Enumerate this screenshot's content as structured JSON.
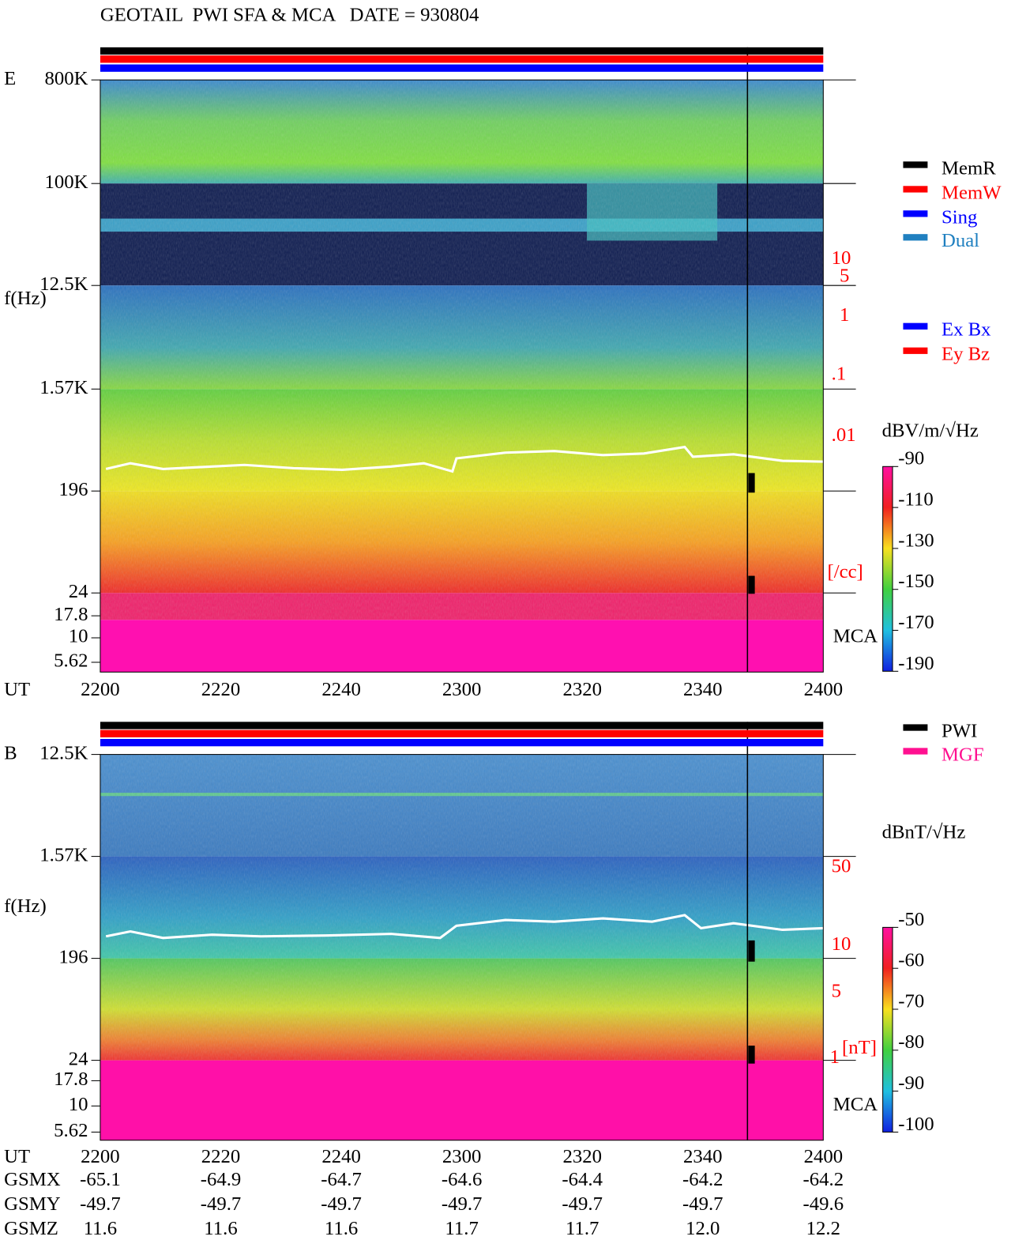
{
  "header": {
    "title": "GEOTAIL  PWI SFA & MCA   DATE = 930804"
  },
  "panels": [
    {
      "label": "E",
      "y_label": "f(Hz)",
      "y_ticks": [
        "800K",
        "100K",
        "12.5K",
        "1.57K",
        "196",
        "24",
        "17.8",
        "10",
        "5.62"
      ],
      "right_scale": [
        "10",
        "5",
        "1",
        ".1",
        ".01",
        "[/cc]"
      ],
      "mca": "MCA",
      "x_label": "UT",
      "x_ticks": [
        "2200",
        "2220",
        "2240",
        "2300",
        "2320",
        "2340",
        "2400"
      ],
      "colorbar": {
        "unit": "dBV/m/√Hz",
        "ticks": [
          "-90",
          "-110",
          "-130",
          "-150",
          "-170",
          "-190"
        ]
      },
      "legend": [
        {
          "name": "MemR",
          "color": "#000000"
        },
        {
          "name": "MemW",
          "color": "#ff0000"
        },
        {
          "name": "Sing",
          "color": "#0000ff"
        },
        {
          "name": "Dual",
          "color": "#2080c0"
        }
      ],
      "legend2": [
        {
          "name": "Ex Bx",
          "color": "#0000ff"
        },
        {
          "name": "Ey Bz",
          "color": "#ff0000"
        }
      ]
    },
    {
      "label": "B",
      "y_label": "f(Hz)",
      "y_ticks": [
        "12.5K",
        "1.57K",
        "196",
        "24",
        "17.8",
        "10",
        "5.62"
      ],
      "right_scale": [
        "50",
        "10",
        "5",
        "1",
        "[nT]"
      ],
      "mca": "MCA",
      "x_label": "UT",
      "x_ticks": [
        "2200",
        "2220",
        "2240",
        "2300",
        "2320",
        "2340",
        "2400"
      ],
      "colorbar": {
        "unit": "dBnT/√Hz",
        "ticks": [
          "-50",
          "-60",
          "-70",
          "-80",
          "-90",
          "-100"
        ]
      },
      "legend": [
        {
          "name": "PWI",
          "color": "#000000"
        },
        {
          "name": "MGF",
          "color": "#ff1090"
        }
      ]
    }
  ],
  "ephemeris": {
    "rows": [
      {
        "label": "GSMX",
        "values": [
          "-65.1",
          "-64.9",
          "-64.7",
          "-64.6",
          "-64.4",
          "-64.2",
          "-64.2"
        ]
      },
      {
        "label": "GSMY",
        "values": [
          "-49.7",
          "-49.7",
          "-49.7",
          "-49.7",
          "-49.7",
          "-49.7",
          "-49.6"
        ]
      },
      {
        "label": "GSMZ",
        "values": [
          "11.6",
          "11.6",
          "11.6",
          "11.7",
          "11.7",
          "12.0",
          "12.2"
        ]
      }
    ]
  }
}
